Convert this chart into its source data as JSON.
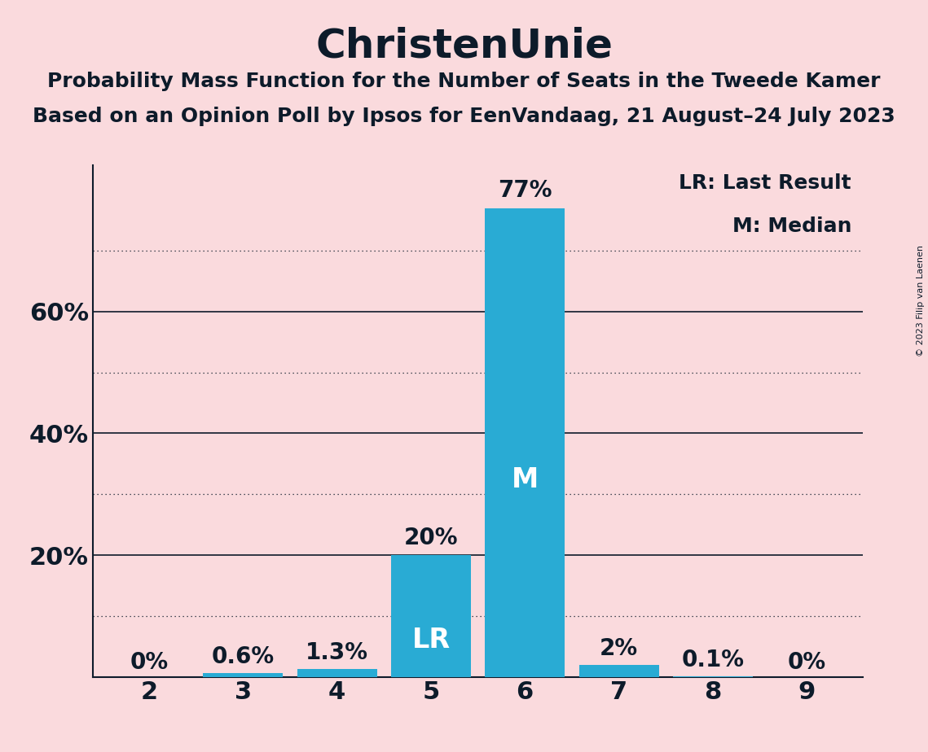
{
  "title": "ChristenUnie",
  "subtitle1": "Probability Mass Function for the Number of Seats in the Tweede Kamer",
  "subtitle2": "Based on an Opinion Poll by Ipsos for EenVandaag, 21 August–24 July 2023",
  "copyright": "© 2023 Filip van Laenen",
  "seats": [
    2,
    3,
    4,
    5,
    6,
    7,
    8,
    9
  ],
  "probabilities": [
    0.0,
    0.6,
    1.3,
    20.0,
    77.0,
    2.0,
    0.1,
    0.0
  ],
  "bar_labels": [
    "0%",
    "0.6%",
    "1.3%",
    "20%",
    "77%",
    "2%",
    "0.1%",
    "0%"
  ],
  "bar_color": "#29ABD4",
  "background_color": "#FADADD",
  "label_color": "#0D1B2A",
  "bar_label_color_inside": "#FFFFFF",
  "lr_seat": 5,
  "median_seat": 6,
  "ylim": [
    0,
    84
  ],
  "yticks_solid": [
    20,
    40,
    60
  ],
  "yticks_dotted": [
    10,
    30,
    50,
    70
  ],
  "legend_lr": "LR: Last Result",
  "legend_m": "M: Median",
  "title_fontsize": 36,
  "subtitle_fontsize": 18,
  "axis_tick_fontsize": 22,
  "bar_label_fontsize": 20,
  "bar_label_inside_fontsize": 24,
  "legend_fontsize": 18,
  "copyright_fontsize": 8
}
